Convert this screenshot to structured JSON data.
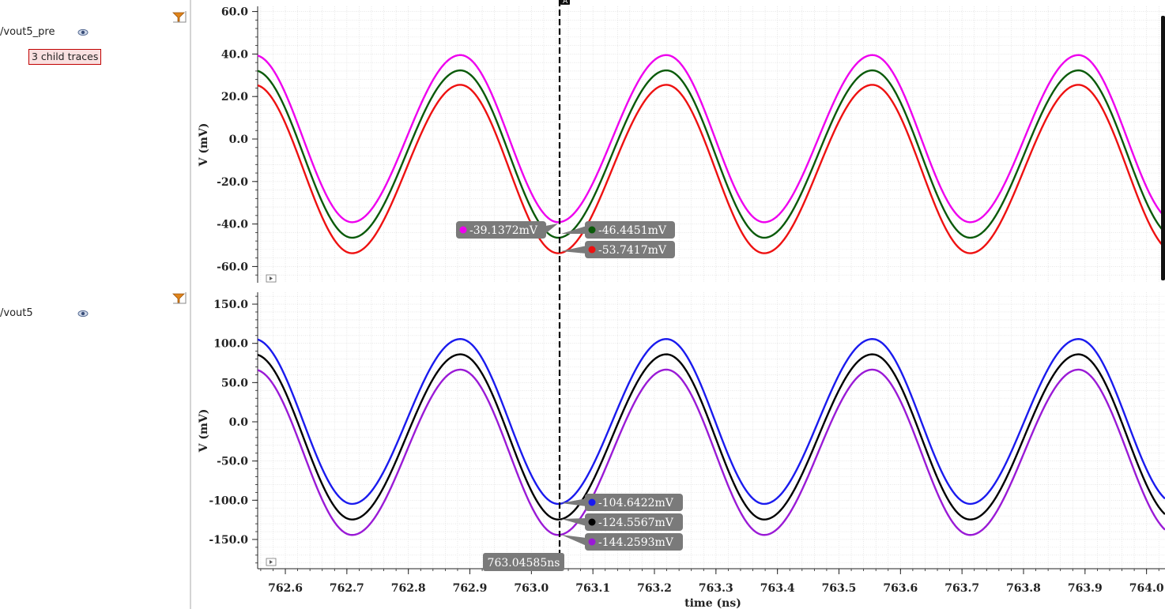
{
  "panel": {
    "traces": [
      {
        "name": "/vout5_pre",
        "icon": "eye-icon",
        "child_badge": "3 child traces"
      },
      {
        "name": "/vout5",
        "icon": "eye-icon"
      }
    ],
    "filter_icon": "filter-icon"
  },
  "cursor": {
    "label": "763.04585ns",
    "x": 763.04585,
    "marker_label": "A"
  },
  "chart_data": [
    {
      "type": "line",
      "ylabel": "V (mV)",
      "xlabel": "",
      "xlim": [
        762.555,
        764.03
      ],
      "ylim": [
        -65,
        62
      ],
      "yticks": [
        60,
        40,
        20,
        0,
        -20,
        -40,
        -60
      ],
      "ytick_labels": [
        "60.0",
        "40.0",
        "20.0",
        "0.0",
        "-20.0",
        "-40.0",
        "-60.0"
      ],
      "grid": true,
      "waveform": {
        "period": 0.3349,
        "trough_x": 762.7085,
        "peak_x": 762.8845
      },
      "series": [
        {
          "color": "#ee00ee",
          "peak": 39.5,
          "trough": -39.1372
        },
        {
          "color": "#0a5a0a",
          "peak": 32.3,
          "trough": -46.4451
        },
        {
          "color": "#ee1111",
          "peak": 25.5,
          "trough": -53.7417
        }
      ],
      "cursor_labels": [
        {
          "text": "-39.1372mV",
          "color": "#ee00ee",
          "side": "left"
        },
        {
          "text": "-46.4451mV",
          "color": "#0a5a0a",
          "side": "right"
        },
        {
          "text": "-53.7417mV",
          "color": "#ee1111",
          "side": "right"
        }
      ]
    },
    {
      "type": "line",
      "ylabel": "V (mV)",
      "xlabel": "time (ns)",
      "xlim": [
        762.555,
        764.03
      ],
      "ylim": [
        -185,
        165
      ],
      "yticks": [
        150,
        100,
        50,
        0,
        -50,
        -100,
        -150
      ],
      "ytick_labels": [
        "150.0",
        "100.0",
        "50.0",
        "0.0",
        "-50.0",
        "-100.0",
        "-150.0"
      ],
      "xticks": [
        762.6,
        762.7,
        762.8,
        762.9,
        763.0,
        763.1,
        763.2,
        763.3,
        763.4,
        763.5,
        763.6,
        763.7,
        763.8,
        763.9,
        764.0
      ],
      "xtick_labels": [
        "762.6",
        "762.7",
        "762.8",
        "762.9",
        "763.0",
        "763.1",
        "763.2",
        "763.3",
        "763.4",
        "763.5",
        "763.6",
        "763.7",
        "763.8",
        "763.9",
        "764.0"
      ],
      "grid": true,
      "waveform": {
        "period": 0.3349,
        "trough_x": 762.7085,
        "peak_x": 762.8845
      },
      "series": [
        {
          "color": "#1a1aee",
          "peak": 105.5,
          "trough": -104.6422
        },
        {
          "color": "#000000",
          "peak": 86.0,
          "trough": -124.5567
        },
        {
          "color": "#9a1ad6",
          "peak": 66.5,
          "trough": -144.2593
        }
      ],
      "cursor_labels": [
        {
          "text": "-104.6422mV",
          "color": "#1a1aee",
          "side": "right"
        },
        {
          "text": "-124.5567mV",
          "color": "#000000",
          "side": "right"
        },
        {
          "text": "-144.2593mV",
          "color": "#9a1ad6",
          "side": "right"
        }
      ]
    }
  ]
}
